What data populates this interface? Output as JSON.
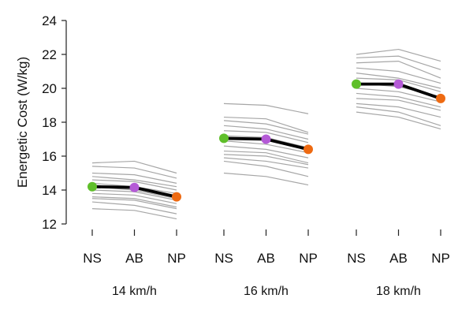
{
  "chart_data": {
    "type": "line",
    "ylabel": "Energetic Cost (W/kg)",
    "xlabel": "",
    "title": "",
    "ylim": [
      12,
      24
    ],
    "yticks": [
      12,
      14,
      16,
      18,
      20,
      22,
      24
    ],
    "grid": false,
    "legend": "none",
    "conditions": [
      "NS",
      "AB",
      "NP"
    ],
    "groups": [
      {
        "label": "14 km/h",
        "mean": [
          14.2,
          14.15,
          13.6
        ],
        "individuals": [
          [
            15.6,
            15.7,
            15.0
          ],
          [
            15.4,
            15.3,
            14.7
          ],
          [
            15.0,
            14.9,
            14.4
          ],
          [
            14.8,
            14.6,
            14.2
          ],
          [
            14.6,
            14.5,
            14.0
          ],
          [
            14.4,
            14.2,
            13.8
          ],
          [
            14.2,
            14.0,
            13.5
          ],
          [
            14.0,
            13.9,
            13.4
          ],
          [
            13.8,
            13.7,
            13.2
          ],
          [
            13.6,
            13.5,
            13.0
          ],
          [
            13.5,
            13.4,
            12.9
          ],
          [
            13.3,
            13.1,
            12.6
          ],
          [
            12.9,
            12.8,
            12.3
          ]
        ]
      },
      {
        "label": "16 km/h",
        "mean": [
          17.05,
          17.0,
          16.4
        ],
        "individuals": [
          [
            19.1,
            19.0,
            18.5
          ],
          [
            18.3,
            18.2,
            17.4
          ],
          [
            18.1,
            17.9,
            17.3
          ],
          [
            17.8,
            17.6,
            17.0
          ],
          [
            17.5,
            17.4,
            16.8
          ],
          [
            17.2,
            17.1,
            16.5
          ],
          [
            16.9,
            16.7,
            16.2
          ],
          [
            16.6,
            16.4,
            15.9
          ],
          [
            16.3,
            16.2,
            15.6
          ],
          [
            16.1,
            16.0,
            15.5
          ],
          [
            15.9,
            15.7,
            15.3
          ],
          [
            15.7,
            15.4,
            14.8
          ],
          [
            15.0,
            14.8,
            14.3
          ]
        ]
      },
      {
        "label": "18 km/h",
        "mean": [
          20.25,
          20.25,
          19.4
        ],
        "individuals": [
          [
            22.0,
            22.3,
            21.6
          ],
          [
            21.8,
            21.9,
            21.1
          ],
          [
            21.5,
            21.6,
            20.6
          ],
          [
            21.2,
            21.0,
            20.3
          ],
          [
            20.9,
            20.6,
            20.0
          ],
          [
            20.6,
            20.5,
            19.8
          ],
          [
            20.3,
            20.1,
            19.5
          ],
          [
            20.0,
            19.8,
            19.2
          ],
          [
            19.7,
            19.5,
            18.9
          ],
          [
            19.4,
            19.3,
            18.7
          ],
          [
            19.1,
            18.9,
            18.3
          ],
          [
            18.9,
            18.6,
            17.8
          ],
          [
            18.6,
            18.3,
            17.6
          ]
        ]
      }
    ],
    "colors": {
      "individual": "#a6a6a6",
      "mean_line": "#000000",
      "NS": "#5fbf2a",
      "AB": "#b45ad6",
      "NP": "#ee6a12"
    }
  }
}
